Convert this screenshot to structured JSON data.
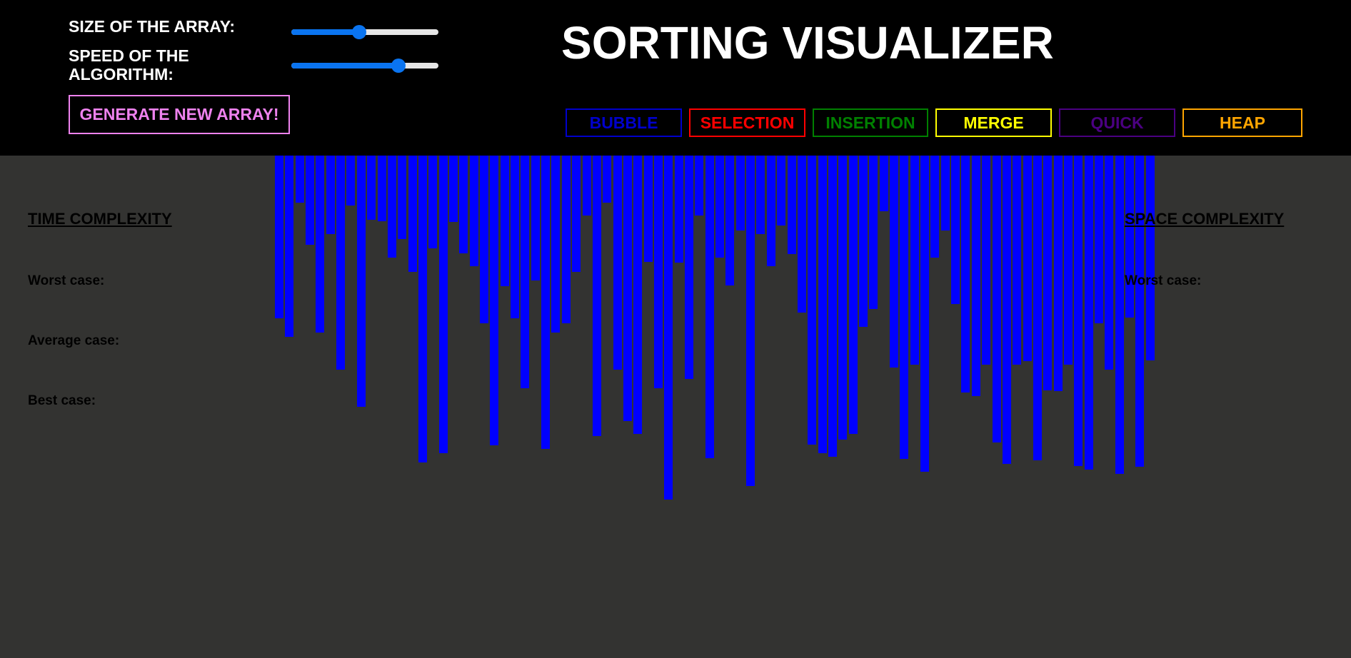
{
  "controls": {
    "size_label": "SIZE OF THE ARRAY:",
    "size_value": 0.46,
    "speed_label": "SPEED OF THE ALGORITHM:",
    "speed_value": 0.73,
    "generate_label": "GENERATE NEW ARRAY!"
  },
  "title": "SORTING VISUALIZER",
  "algorithms": [
    {
      "label": "BUBBLE",
      "color": "#0000cc"
    },
    {
      "label": "SELECTION",
      "color": "#ff0000"
    },
    {
      "label": "INSERTION",
      "color": "#008000"
    },
    {
      "label": "MERGE",
      "color": "#ffff00"
    },
    {
      "label": "QUICK",
      "color": "#4b0082"
    },
    {
      "label": "HEAP",
      "color": "#ffa500"
    }
  ],
  "time_complexity": {
    "heading": "TIME COMPLEXITY",
    "worst_label": "Worst case:",
    "average_label": "Average case:",
    "best_label": "Best case:"
  },
  "space_complexity": {
    "heading": "SPACE COMPLEXITY",
    "worst_label": "Worst case:"
  },
  "array": {
    "bar_color": "#0000ff",
    "values": [
      228,
      254,
      66,
      125,
      248,
      110,
      300,
      70,
      352,
      90,
      92,
      143,
      117,
      163,
      430,
      130,
      417,
      93,
      137,
      155,
      235,
      406,
      183,
      228,
      326,
      175,
      411,
      248,
      235,
      163,
      84,
      393,
      66,
      300,
      372,
      390,
      149,
      326,
      482,
      150,
      313,
      84,
      424,
      143,
      182,
      105,
      463,
      110,
      155,
      98,
      138,
      220,
      405,
      417,
      422,
      398,
      390,
      240,
      215,
      78,
      297,
      425,
      293,
      443,
      143,
      105,
      208,
      332,
      337,
      293,
      402,
      432,
      293,
      288,
      427,
      329,
      330,
      293,
      435,
      440,
      235,
      300,
      446,
      227,
      436,
      287
    ]
  }
}
